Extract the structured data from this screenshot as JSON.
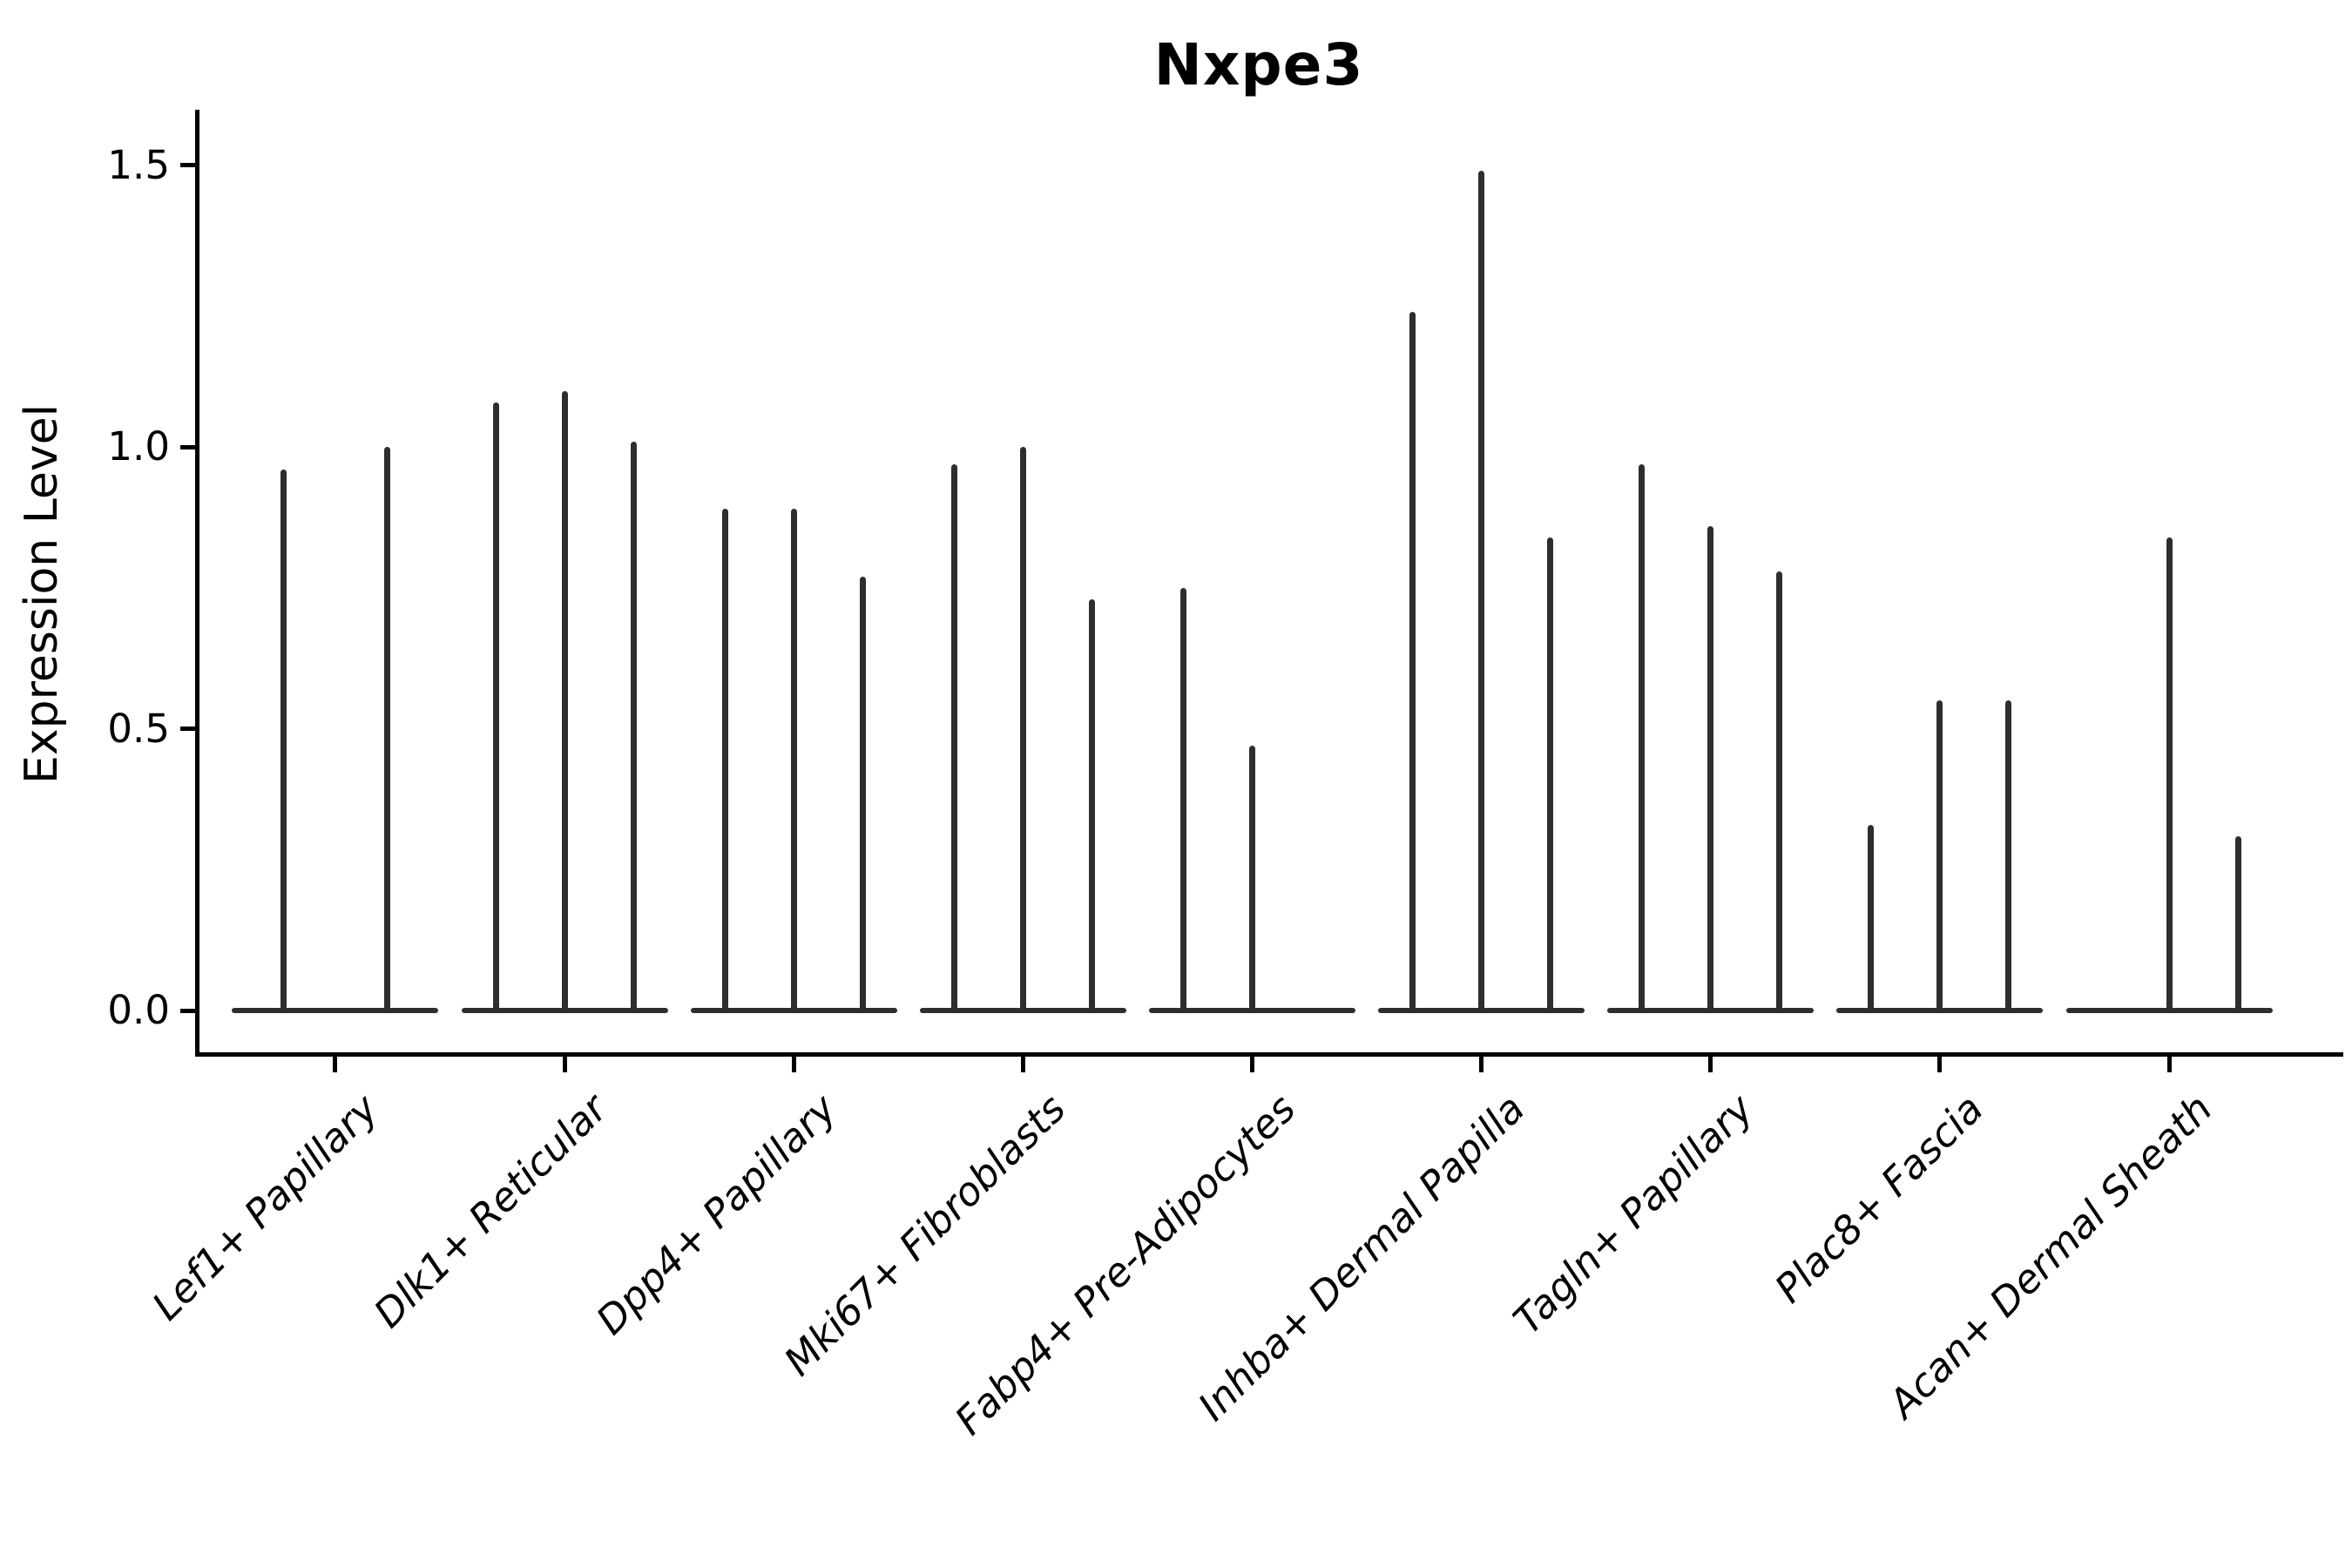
{
  "figure": {
    "background": "#ffffff",
    "violin_color": "#2e2e2e",
    "axis_color": "#000000",
    "text_color": "#000000"
  },
  "chart_data": {
    "type": "violin",
    "title": "Nxpe3",
    "xlabel": "",
    "ylabel": "Expression Level",
    "yticks": [
      0.0,
      0.5,
      1.0,
      1.5
    ],
    "ytick_labels": [
      "0.0",
      "0.5",
      "1.0",
      "1.5"
    ],
    "ylim": [
      -0.08,
      1.59
    ],
    "grid": false,
    "legend": null,
    "categories": [
      "Lef1+ Papillary",
      "Dlk1+ Reticular",
      "Dpp4+ Papillary",
      "Mki67+ Fibroblasts",
      "Fabp4+ Pre-Adipocytes",
      "Inhba+ Dermal Papilla",
      "Tagln+ Papillary",
      "Plac8+ Fascia",
      "Acan+ Dermal Sheath"
    ],
    "groups": [
      {
        "category": "Lef1+ Papillary",
        "violin_max_values": [
          0.96,
          1.0
        ]
      },
      {
        "category": "Dlk1+ Reticular",
        "violin_max_values": [
          1.08,
          1.1,
          1.01
        ]
      },
      {
        "category": "Dpp4+ Papillary",
        "violin_max_values": [
          0.89,
          0.89,
          0.77
        ]
      },
      {
        "category": "Mki67+ Fibroblasts",
        "violin_max_values": [
          0.97,
          1.0,
          0.73
        ]
      },
      {
        "category": "Fabp4+ Pre-Adipocytes",
        "violin_max_values": [
          0.75,
          0.47,
          0
        ]
      },
      {
        "category": "Inhba+ Dermal Papilla",
        "violin_max_values": [
          1.24,
          1.49,
          0.84
        ]
      },
      {
        "category": "Tagln+ Papillary",
        "violin_max_values": [
          0.97,
          0.86,
          0.78
        ]
      },
      {
        "category": "Plac8+ Fascia",
        "violin_max_values": [
          0.33,
          0.55,
          0.55
        ]
      },
      {
        "category": "Acan+ Dermal Sheath",
        "violin_max_values": [
          0,
          0.84,
          0.31
        ]
      }
    ]
  }
}
